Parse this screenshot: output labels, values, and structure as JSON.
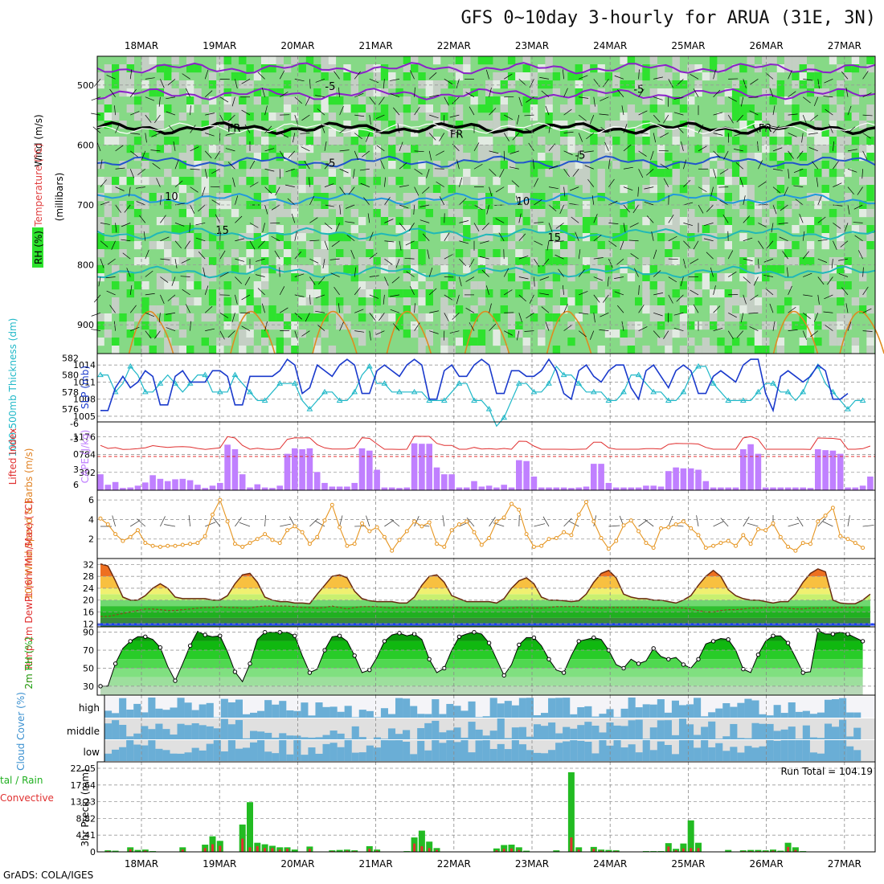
{
  "title": "GFS 0~10day 3-hourly for ARUA (31E, 3N)",
  "footer": "GrADS: COLA/IGES",
  "dates": [
    "18MAR",
    "19MAR",
    "20MAR",
    "21MAR",
    "22MAR",
    "23MAR",
    "24MAR",
    "25MAR",
    "26MAR",
    "27MAR"
  ],
  "colors": {
    "rh_green": "#4fd84f",
    "rh_light": "#86d986",
    "rh_gray": "#c4cfc4",
    "cloud": "#6aaed6",
    "rain": "#22bb22",
    "conv": "#e03030",
    "cape": "#c080ff"
  },
  "chart_data": [
    {
      "type": "heatmap",
      "name": "rh-temp-wind",
      "ylabel_parts": [
        "RH (%)",
        "Temperature (°C)",
        "Wind (m/s)",
        "(millibars)"
      ],
      "ylabel_vertical": "(millibars)",
      "yticks": [
        500,
        600,
        700,
        800,
        900
      ],
      "ylim": [
        452,
        948
      ],
      "temperature_labels": [
        "-5",
        "FR",
        "FR",
        "FR",
        "-5",
        "-5",
        "-5",
        "-5",
        "10",
        "10",
        "15",
        "15"
      ],
      "contour_labels": [
        {
          "text": "-5",
          "t": 2.35,
          "p": 508
        },
        {
          "text": "-5",
          "t": 6.3,
          "p": 513
        },
        {
          "text": "FR",
          "t": 1.1,
          "p": 578
        },
        {
          "text": "FR",
          "t": 3.95,
          "p": 588
        },
        {
          "text": "FR",
          "t": 7.9,
          "p": 578
        },
        {
          "text": "-5",
          "t": 2.35,
          "p": 636
        },
        {
          "text": "-5",
          "t": 5.55,
          "p": 623
        },
        {
          "text": "10",
          "t": 0.3,
          "p": 692
        },
        {
          "text": "10",
          "t": 4.8,
          "p": 700
        },
        {
          "text": "15",
          "t": 0.95,
          "p": 748
        },
        {
          "text": "15",
          "t": 5.2,
          "p": 760
        }
      ]
    },
    {
      "type": "line",
      "name": "slp-thickness",
      "ylabel_left": "1000-500mb Thickness (dm)",
      "ylabel_right": "SLP (mb)",
      "left_ticks": [
        576,
        578,
        580,
        582
      ],
      "right_ticks": [
        1005,
        1008,
        1011,
        1014
      ],
      "slp": [
        1006,
        1006,
        1010,
        1012,
        1010,
        1011,
        1013,
        1012,
        1007,
        1007,
        1012,
        1013,
        1011,
        1011,
        1011,
        1013,
        1013,
        1012,
        1007,
        1007,
        1012,
        1012,
        1012,
        1012,
        1013,
        1015,
        1014,
        1009,
        1010,
        1014,
        1013,
        1012,
        1014,
        1015,
        1014,
        1009,
        1009,
        1013,
        1014,
        1013,
        1012,
        1014,
        1015,
        1014,
        1008,
        1008,
        1013,
        1014,
        1012,
        1012,
        1014,
        1015,
        1014,
        1009,
        1009,
        1013,
        1013,
        1012,
        1012,
        1013,
        1015,
        1013,
        1009,
        1008,
        1013,
        1014,
        1012,
        1011,
        1013,
        1014,
        1014,
        1010,
        1008,
        1013,
        1014,
        1012,
        1010,
        1013,
        1014,
        1013,
        1009,
        1009,
        1012,
        1013,
        1012,
        1011,
        1014,
        1015,
        1015,
        1009,
        1006,
        1012,
        1013,
        1012,
        1011,
        1012,
        1014,
        1013,
        1008,
        1008,
        1009
      ],
      "thickness": [
        580,
        580,
        578,
        579,
        581,
        580,
        578,
        578,
        579,
        580,
        579,
        578,
        579,
        580,
        580,
        578,
        578,
        578,
        580,
        579,
        578,
        577,
        577,
        578,
        579,
        579,
        579,
        577,
        576,
        577,
        578,
        578,
        577,
        577,
        578,
        580,
        581,
        579,
        579,
        578,
        578,
        578,
        578,
        578,
        577,
        577,
        577,
        578,
        579,
        579,
        577,
        577,
        576,
        574,
        575,
        577,
        579,
        579,
        578,
        578,
        579,
        581,
        580,
        580,
        579,
        578,
        578,
        578,
        577,
        577,
        578,
        580,
        580,
        579,
        578,
        578,
        577,
        577,
        578,
        580,
        581,
        581,
        579,
        578,
        577,
        577,
        577,
        577,
        578,
        579,
        579,
        578,
        578,
        577,
        578,
        580,
        581,
        579,
        578,
        577,
        576,
        577,
        577
      ]
    },
    {
      "type": "bar",
      "name": "cape-lifted-index",
      "ylabel_left": "Lifted Index",
      "ylabel_right": "CAPE (J/kg)",
      "left_ticks": [
        -6,
        -3,
        0,
        3,
        6
      ],
      "right_ticks": [
        392,
        784,
        1176
      ],
      "cape": [
        350,
        120,
        180,
        50,
        60,
        100,
        170,
        330,
        250,
        200,
        240,
        250,
        220,
        120,
        50,
        100,
        160,
        1000,
        900,
        350,
        60,
        130,
        60,
        50,
        100,
        800,
        920,
        900,
        920,
        400,
        160,
        80,
        80,
        80,
        160,
        920,
        870,
        450,
        60,
        60,
        50,
        60,
        1030,
        1020,
        1020,
        500,
        350,
        350,
        60,
        60,
        200,
        80,
        100,
        60,
        120,
        60,
        660,
        640,
        300,
        60,
        60,
        60,
        60,
        50,
        60,
        80,
        580,
        580,
        160,
        60,
        60,
        60,
        60,
        100,
        100,
        80,
        420,
        500,
        480,
        480,
        450,
        200,
        60,
        60,
        60,
        60,
        900,
        1010,
        800,
        60,
        60,
        60,
        60,
        60,
        60,
        50,
        900,
        880,
        870,
        800,
        60,
        60,
        100,
        300
      ]
    },
    {
      "type": "line",
      "name": "10m-wind",
      "ylabel": "10m Wind Speed & Barbs (m/s)",
      "yticks": [
        2,
        4,
        6
      ],
      "speed": [
        4.1,
        3.5,
        2.5,
        1.8,
        2.2,
        2.9,
        1.6,
        1.3,
        1.2,
        1.3,
        1.3,
        1.4,
        1.5,
        1.6,
        2.3,
        4.5,
        6.0,
        3.8,
        1.5,
        1.2,
        1.6,
        2.0,
        2.5,
        1.9,
        1.6,
        2.9,
        3.3,
        2.7,
        1.5,
        2.2,
        3.9,
        5.5,
        3.2,
        1.3,
        1.5,
        3.6,
        2.8,
        3.2,
        2.2,
        0.8,
        1.9,
        2.8,
        3.8,
        3.3,
        3.7,
        1.5,
        1.2,
        2.9,
        3.5,
        3.8,
        2.7,
        1.4,
        2.1,
        3.8,
        4.2,
        5.6,
        5.0,
        2.5,
        1.2,
        1.3,
        2.0,
        2.1,
        2.7,
        2.4,
        4.5,
        5.8,
        3.8,
        2.1,
        1.0,
        1.8,
        3.4,
        3.9,
        2.8,
        1.6,
        1.1,
        3.1,
        3.2,
        3.5,
        3.8,
        3.1,
        2.4,
        1.1,
        1.3,
        1.6,
        1.8,
        1.3,
        2.4,
        1.5,
        3.0,
        2.9,
        3.6,
        2.2,
        1.2,
        0.8,
        1.6,
        1.5,
        3.8,
        4.4,
        5.2,
        2.3,
        2.0,
        1.6,
        1.1
      ]
    },
    {
      "type": "area",
      "name": "2m-temp",
      "ylabel": "2m Temp 2m DewPt (6hr Min/Max) (°C)",
      "yticks": [
        12,
        16,
        20,
        24,
        28,
        32
      ],
      "temp": [
        32.2,
        31.5,
        26.5,
        21.0,
        20.0,
        20.0,
        21.5,
        24.0,
        25.5,
        24.0,
        21.0,
        20.5,
        20.5,
        20.5,
        20.5,
        20.0,
        20.0,
        21.5,
        25.5,
        28.5,
        29.0,
        26.0,
        21.0,
        20.0,
        19.5,
        19.5,
        19.0,
        19.0,
        18.8,
        22.0,
        25.0,
        28.0,
        28.5,
        27.5,
        23.0,
        20.5,
        19.8,
        19.5,
        19.5,
        19.5,
        19.0,
        19.0,
        21.0,
        25.0,
        28.0,
        28.5,
        26.0,
        21.5,
        20.5,
        19.5,
        19.5,
        19.5,
        19.5,
        19.0,
        20.5,
        24.0,
        26.5,
        27.5,
        25.5,
        21.0,
        20.0,
        20.0,
        19.8,
        19.5,
        19.8,
        22.0,
        26.0,
        29.0,
        30.0,
        27.5,
        22.0,
        21.0,
        20.5,
        20.5,
        20.0,
        20.0,
        19.5,
        19.0,
        20.0,
        21.5,
        25.0,
        28.0,
        30.0,
        28.0,
        23.5,
        21.5,
        20.5,
        20.0,
        20.0,
        19.5,
        19.0,
        19.5,
        19.5,
        22.0,
        26.0,
        29.0,
        30.5,
        29.5,
        20.0,
        19.0,
        18.8,
        18.8,
        20.0,
        22.0
      ],
      "dewpt": [
        14.5,
        14.5,
        15.0,
        15.5,
        16.0,
        16.5,
        17.0,
        17.0,
        16.8,
        16.5,
        16.5,
        16.8,
        17.0,
        17.3,
        17.5,
        17.5,
        17.8,
        17.5,
        17.5,
        17.3,
        17.3,
        17.8,
        18.0,
        18.0,
        18.0,
        18.0,
        17.8,
        17.5,
        17.5,
        17.3,
        17.5,
        18.0,
        17.5,
        17.0,
        17.5,
        17.8,
        17.8,
        17.8,
        17.5,
        17.3,
        17.5,
        17.8,
        17.5,
        17.5,
        17.5,
        17.5,
        17.5,
        17.5,
        17.5,
        17.5,
        17.3,
        17.3,
        17.3,
        17.3,
        17.3,
        17.3,
        17.5,
        17.5,
        17.3,
        17.3,
        17.5,
        17.8,
        17.8,
        17.8,
        17.8,
        17.5,
        17.5,
        17.3,
        17.5,
        17.5,
        17.5,
        17.5,
        17.5,
        17.5,
        17.3,
        17.3,
        17.3,
        17.5,
        17.3,
        17.0,
        16.5,
        16.0,
        16.0,
        16.5,
        16.8,
        16.8,
        17.0,
        17.3,
        17.3,
        17.5,
        17.5,
        17.5,
        17.3,
        17.0,
        17.0,
        17.3,
        17.3,
        17.5,
        17.3,
        17.5,
        17.5,
        17.5,
        17.5
      ]
    },
    {
      "type": "area",
      "name": "2m-rh",
      "ylabel": "2m RH (%)",
      "yticks": [
        30,
        50,
        70,
        90
      ],
      "rh": [
        30,
        30,
        55,
        72,
        80,
        85,
        85,
        82,
        73,
        52,
        36,
        55,
        75,
        91,
        87,
        85,
        86,
        68,
        46,
        35,
        55,
        82,
        90,
        90,
        90,
        90,
        86,
        64,
        45,
        49,
        70,
        85,
        86,
        80,
        64,
        45,
        48,
        62,
        80,
        87,
        89,
        86,
        88,
        82,
        60,
        45,
        50,
        70,
        85,
        88,
        90,
        88,
        78,
        60,
        42,
        54,
        76,
        84,
        84,
        75,
        60,
        48,
        45,
        64,
        80,
        82,
        84,
        82,
        70,
        54,
        50,
        60,
        55,
        58,
        72,
        63,
        60,
        62,
        54,
        50,
        60,
        77,
        80,
        83,
        82,
        70,
        49,
        45,
        65,
        80,
        86,
        86,
        78,
        62,
        45,
        46,
        92,
        88,
        88,
        90,
        88,
        84,
        80
      ]
    },
    {
      "type": "heatmap",
      "name": "cloud-cover",
      "ylabel": "Cloud Cover (%)",
      "yticks": [
        "high",
        "middle",
        "low"
      ]
    },
    {
      "type": "bar",
      "name": "precip",
      "ylabel": "3hr Precip (mm)",
      "legend_left": [
        "tal / Rain",
        "Convective"
      ],
      "yticks": [
        0,
        4.41,
        8.82,
        13.23,
        17.64,
        22.05
      ],
      "run_total_label": "Run Total = 104.19",
      "total": [
        0,
        0.4,
        0.3,
        0,
        1.2,
        0.5,
        0.6,
        0.2,
        0,
        0,
        0,
        1.2,
        0,
        0,
        1.9,
        4.1,
        2.9,
        0,
        0,
        7.2,
        13.1,
        2.4,
        2.0,
        1.6,
        1.2,
        1.2,
        0.6,
        0,
        1.4,
        0,
        0,
        0.4,
        0.5,
        0.6,
        0.4,
        0,
        1.5,
        0.6,
        0,
        0,
        0,
        0.2,
        3.8,
        5.6,
        2.7,
        1.0,
        0,
        0,
        0,
        0,
        0,
        0,
        0,
        0.9,
        1.8,
        1.9,
        1.2,
        0.3,
        0,
        0,
        0,
        0.4,
        0,
        21.0,
        1.2,
        0,
        1.3,
        0.6,
        0.5,
        0.4,
        0.1,
        0,
        0,
        0.2,
        0.2,
        0.2,
        2.3,
        0.8,
        2.2,
        8.3,
        2.4,
        0,
        0,
        0,
        0.5,
        0,
        0.4,
        0.5,
        0.5,
        0.4,
        0.6,
        0.3,
        2.4,
        1.2,
        0.2,
        0,
        0
      ],
      "convective": [
        0,
        0.2,
        0,
        0,
        0.7,
        0,
        0.3,
        0,
        0,
        0,
        0,
        0.6,
        0,
        0,
        1.0,
        2.0,
        1.6,
        0,
        0,
        3.5,
        1.2,
        1.5,
        1.0,
        1.0,
        0.6,
        0.8,
        0,
        0,
        0.8,
        0,
        0,
        0.2,
        0,
        0.3,
        0.2,
        0,
        0.8,
        0.3,
        0,
        0,
        0,
        0,
        2.2,
        1.5,
        1.0,
        0.5,
        0,
        0,
        0,
        0,
        0,
        0,
        0,
        0.4,
        0.8,
        0.9,
        0.5,
        0,
        0,
        0,
        0,
        0,
        0,
        3.8,
        0.6,
        0,
        0.8,
        0.3,
        0.2,
        0.2,
        0,
        0,
        0,
        0,
        0,
        0,
        1.4,
        0.4,
        0.9,
        1.0,
        1.0,
        0,
        0,
        0,
        0,
        0,
        0.2,
        0.2,
        0.2,
        0.2,
        0.3,
        0,
        1.3,
        0.5,
        0,
        0,
        0
      ]
    }
  ]
}
